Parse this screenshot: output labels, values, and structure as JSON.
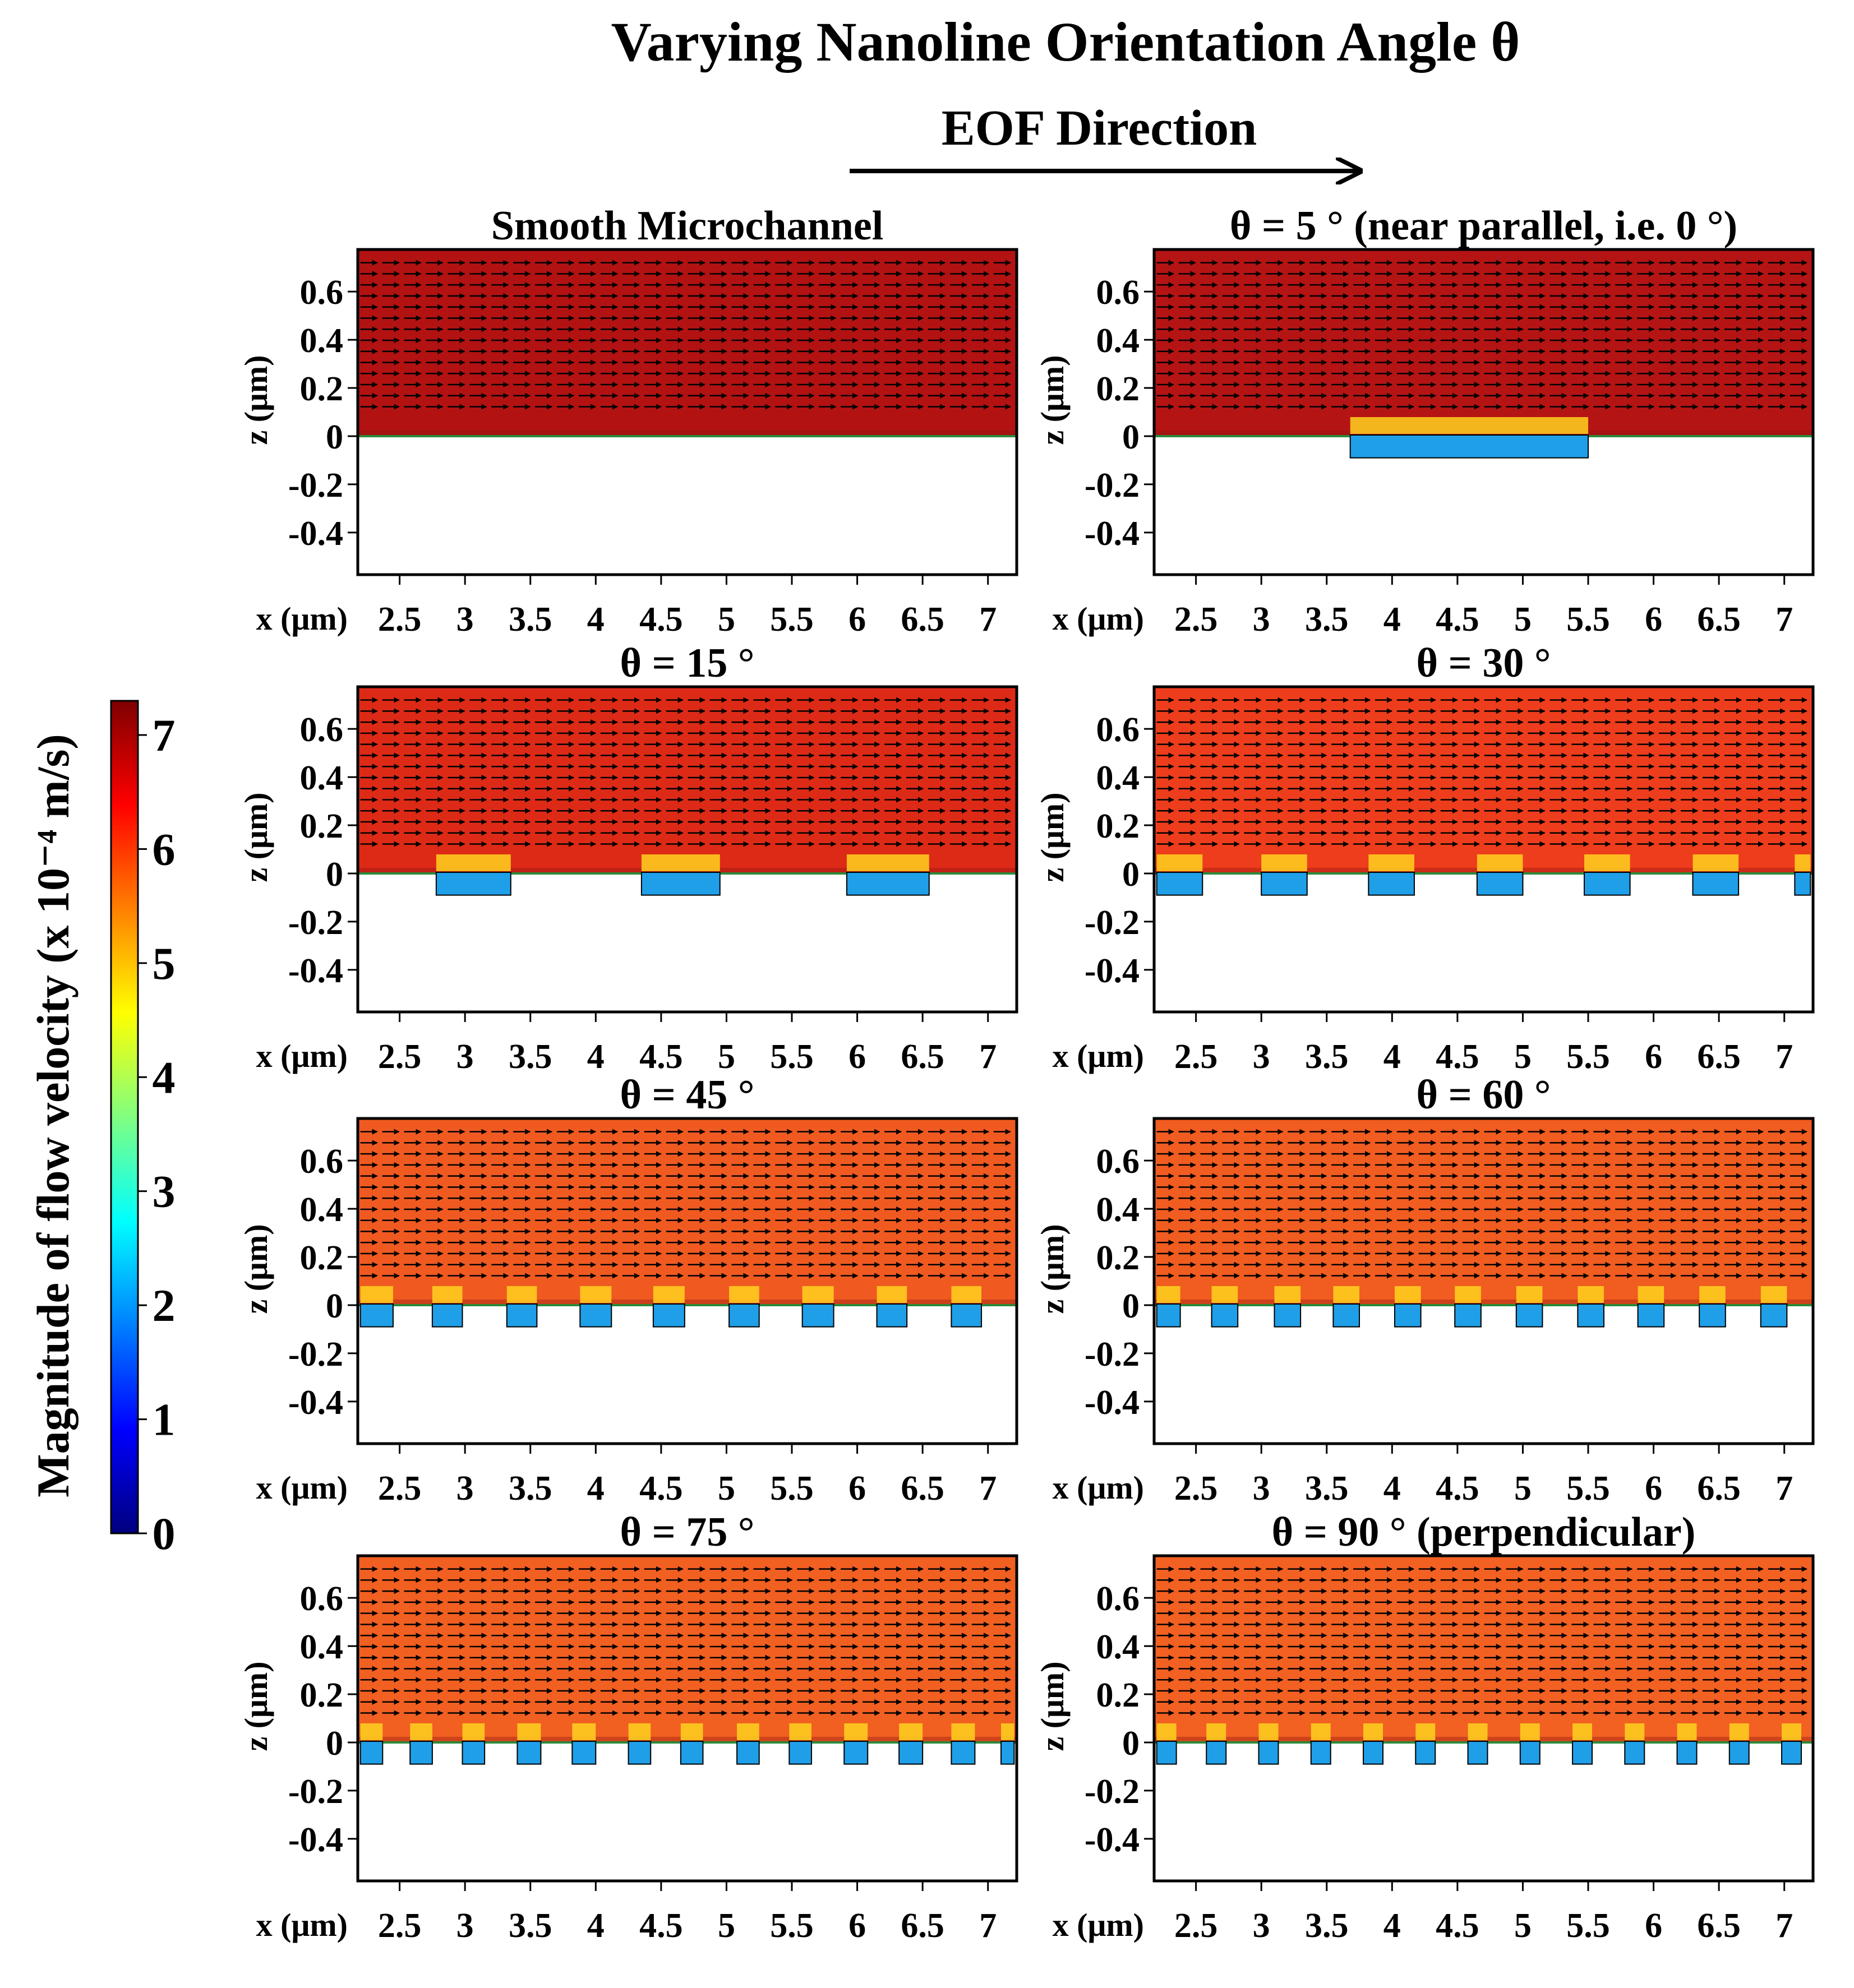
{
  "figure": {
    "title": "Varying Nanoline Orientation Angle θ",
    "eof_label": "EOF Direction",
    "colorbar": {
      "label": "Magnitude of flow velocity (x 10⁻⁴ m/s)",
      "ticks": [
        "0",
        "1",
        "2",
        "3",
        "4",
        "5",
        "6",
        "7"
      ],
      "max_value": 7.3,
      "colors": [
        "#00007f",
        "#0000ff",
        "#0080ff",
        "#00ffff",
        "#80ff80",
        "#ffff00",
        "#ff8000",
        "#ff0000",
        "#7f0000"
      ]
    },
    "axes": {
      "x_label": "x (μm)",
      "z_label": "z (μm)",
      "x_ticks": [
        "2.5",
        "3",
        "3.5",
        "4",
        "4.5",
        "5",
        "5.5",
        "6",
        "6.5",
        "7"
      ],
      "z_ticks": [
        "0.6",
        "0.4",
        "0.2",
        "0",
        "-0.2",
        "-0.4"
      ]
    },
    "panels": [
      {
        "title": "Smooth Microchannel",
        "color": "#b21212",
        "grooves": []
      },
      {
        "title": "θ = 5 ° (near parallel, i.e. 0 °)",
        "color": "#b51414",
        "grooves": [
          [
            3.68,
            5.5
          ]
        ]
      },
      {
        "title": "θ = 15 °",
        "color": "#dd2a17",
        "grooves": [
          [
            2.78,
            3.35
          ],
          [
            4.35,
            4.95
          ],
          [
            5.92,
            6.55
          ]
        ]
      },
      {
        "title": "θ = 30 °",
        "color": "#ee3d1c",
        "grooves": [
          [
            2.2,
            2.55
          ],
          [
            3.0,
            3.35
          ],
          [
            3.82,
            4.17
          ],
          [
            4.65,
            5.0
          ],
          [
            5.47,
            5.82
          ],
          [
            6.3,
            6.65
          ],
          [
            7.08,
            7.2
          ]
        ]
      },
      {
        "title": "θ = 45 °",
        "color": "#f05a21",
        "grooves": [
          [
            2.2,
            2.45
          ],
          [
            2.75,
            2.98
          ],
          [
            3.32,
            3.55
          ],
          [
            3.88,
            4.12
          ],
          [
            4.44,
            4.68
          ],
          [
            5.02,
            5.25
          ],
          [
            5.58,
            5.82
          ],
          [
            6.15,
            6.38
          ],
          [
            6.72,
            6.95
          ]
        ]
      },
      {
        "title": "θ = 60 °",
        "color": "#f15c20",
        "grooves": [
          [
            2.2,
            2.38
          ],
          [
            2.62,
            2.82
          ],
          [
            3.1,
            3.3
          ],
          [
            3.55,
            3.75
          ],
          [
            4.02,
            4.22
          ],
          [
            4.48,
            4.68
          ],
          [
            4.95,
            5.15
          ],
          [
            5.42,
            5.62
          ],
          [
            5.88,
            6.08
          ],
          [
            6.35,
            6.55
          ],
          [
            6.82,
            7.02
          ]
        ]
      },
      {
        "title": "θ = 75 °",
        "color": "#f15f21",
        "grooves": [
          [
            2.2,
            2.37
          ],
          [
            2.58,
            2.75
          ],
          [
            2.98,
            3.15
          ],
          [
            3.4,
            3.58
          ],
          [
            3.82,
            4.0
          ],
          [
            4.25,
            4.42
          ],
          [
            4.65,
            4.82
          ],
          [
            5.08,
            5.25
          ],
          [
            5.48,
            5.65
          ],
          [
            5.9,
            6.08
          ],
          [
            6.32,
            6.5
          ],
          [
            6.72,
            6.9
          ],
          [
            7.1,
            7.2
          ]
        ]
      },
      {
        "title": "θ = 90 ° (perpendicular)",
        "color": "#f26022",
        "grooves": [
          [
            2.2,
            2.35
          ],
          [
            2.58,
            2.73
          ],
          [
            2.98,
            3.13
          ],
          [
            3.38,
            3.53
          ],
          [
            3.78,
            3.93
          ],
          [
            4.18,
            4.33
          ],
          [
            4.58,
            4.73
          ],
          [
            4.98,
            5.13
          ],
          [
            5.38,
            5.53
          ],
          [
            5.78,
            5.93
          ],
          [
            6.18,
            6.33
          ],
          [
            6.58,
            6.73
          ],
          [
            6.98,
            7.13
          ]
        ]
      }
    ]
  }
}
